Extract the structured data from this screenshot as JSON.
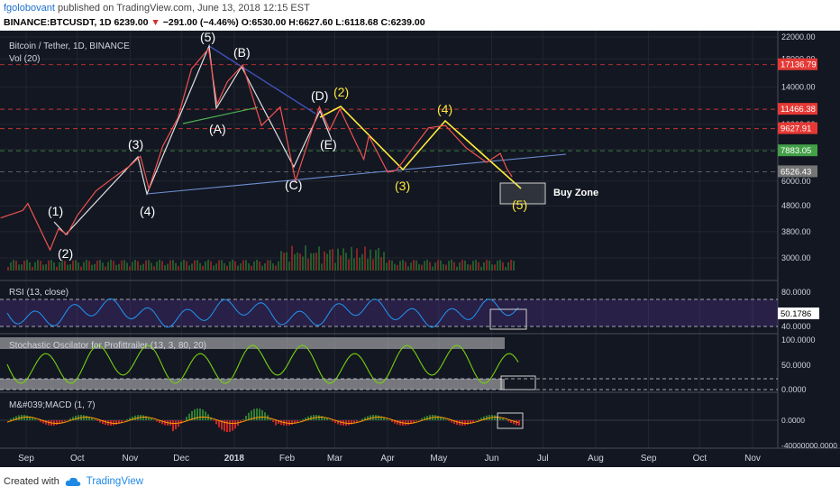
{
  "header": {
    "author": "fgolobovant",
    "published": "published on TradingView.com, June 13, 2018 12:15 EST",
    "symbol": "BINANCE:BTCUSDT, 1D",
    "last": "6239.00",
    "arrow": "▼",
    "change": "−291.00 (−4.46%)",
    "o_label": "O:",
    "o": "6530.00",
    "h_label": "H:",
    "h": "6627.60",
    "l_label": "L:",
    "l": "6118.68",
    "c_label": "C:",
    "c": "6239.00"
  },
  "footer": {
    "created": "Created with",
    "brand": "TradingView"
  },
  "colors": {
    "bg": "#131722",
    "grid": "#2a2e39",
    "up": "#4caf50",
    "down": "#e53935",
    "wave_white": "#ffffff",
    "wave_yellow": "#ffeb3b",
    "trend_blue": "#6d8fd1",
    "rsi": "#2196f3",
    "stoch": "#76d10e"
  },
  "chart_data": [
    {
      "type": "line",
      "title": "Bitcoin / Tether, 1D, BINANCE",
      "subtitle": "Vol (20)",
      "x_ticks": [
        "Sep",
        "Oct",
        "Nov",
        "Dec",
        "2018",
        "Feb",
        "Mar",
        "Apr",
        "May",
        "Jun",
        "Jul",
        "Aug",
        "Sep",
        "Oct",
        "Nov"
      ],
      "y_scale": "log",
      "y_ticks": [
        "22000.00",
        "18000.00",
        "14000.00",
        "10000.00",
        "8000.00",
        "6000.00",
        "4800.00",
        "3800.00",
        "3000.00"
      ],
      "price_tags": [
        {
          "value": "17136.79",
          "color": "#e53935"
        },
        {
          "value": "11466.38",
          "color": "#e53935"
        },
        {
          "value": "9627.91",
          "color": "#e53935"
        },
        {
          "value": "7883.05",
          "color": "#43a047"
        },
        {
          "value": "6526.43",
          "color": "#757575"
        }
      ],
      "price_path": [
        [
          "2017-08-17",
          4300
        ],
        [
          "2017-08-30",
          4600
        ],
        [
          "2017-09-02",
          4900
        ],
        [
          "2017-09-15",
          3226
        ],
        [
          "2017-09-20",
          3900
        ],
        [
          "2017-09-25",
          3700
        ],
        [
          "2017-10-01",
          4400
        ],
        [
          "2017-10-12",
          5500
        ],
        [
          "2017-10-21",
          6100
        ],
        [
          "2017-11-01",
          6900
        ],
        [
          "2017-11-07",
          7500
        ],
        [
          "2017-11-12",
          5600
        ],
        [
          "2017-11-20",
          8200
        ],
        [
          "2017-11-29",
          10600
        ],
        [
          "2017-12-07",
          16500
        ],
        [
          "2017-12-17",
          19800
        ],
        [
          "2017-12-22",
          12000
        ],
        [
          "2017-12-28",
          14700
        ],
        [
          "2018-01-06",
          17100
        ],
        [
          "2018-01-17",
          9900
        ],
        [
          "2018-01-28",
          11700
        ],
        [
          "2018-02-06",
          6000
        ],
        [
          "2018-02-20",
          11700
        ],
        [
          "2018-02-26",
          9500
        ],
        [
          "2018-03-04",
          11500
        ],
        [
          "2018-03-18",
          7300
        ],
        [
          "2018-03-21",
          9000
        ],
        [
          "2018-04-01",
          6500
        ],
        [
          "2018-04-06",
          6600
        ],
        [
          "2018-04-25",
          9700
        ],
        [
          "2018-05-05",
          9900
        ],
        [
          "2018-05-17",
          8100
        ],
        [
          "2018-05-29",
          7100
        ],
        [
          "2018-06-06",
          7700
        ],
        [
          "2018-06-10",
          6700
        ],
        [
          "2018-06-13",
          6239
        ]
      ],
      "wave_labels_white": [
        "(1)",
        "(2)",
        "(3)",
        "(4)",
        "(5)",
        "(A)",
        "(B)",
        "(C)",
        "(D)",
        "(E)"
      ],
      "wave_labels_yellow": [
        "(2)",
        "(3)",
        "(4)",
        "(5)"
      ],
      "box_label": "Buy Zone"
    },
    {
      "type": "line",
      "title": "RSI (13, close)",
      "y_ticks": [
        "80.0000",
        "40.0000"
      ],
      "last_value": "50.1786",
      "bands": [
        70,
        30
      ]
    },
    {
      "type": "line",
      "title": "Stochastic Oscilator for Profittrailer (13, 3, 80, 20)",
      "y_ticks": [
        "100.0000",
        "50.0000",
        "0.0000"
      ]
    },
    {
      "type": "bar",
      "title": "M&#039;MACD (1, 7)",
      "y_ticks": [
        "0.0000",
        "-40000000.0000"
      ]
    }
  ]
}
